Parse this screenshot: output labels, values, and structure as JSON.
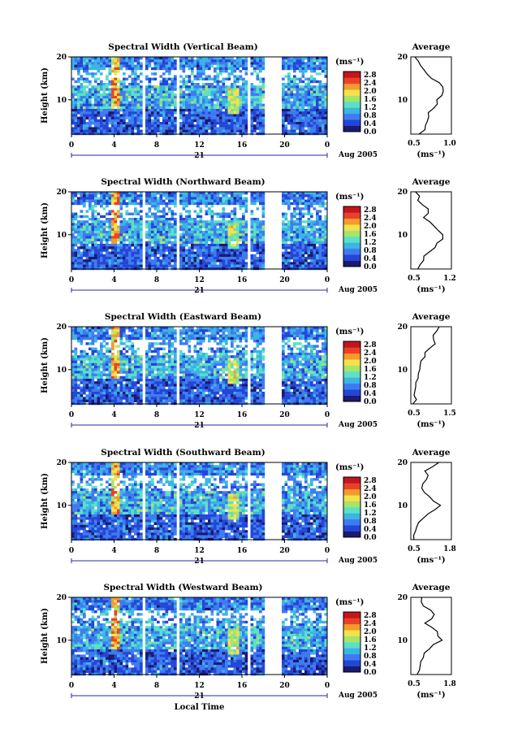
{
  "figure": {
    "x_axis_label": "Local Time",
    "time_ticks": [
      "0",
      "4",
      "8",
      "12",
      "16",
      "20",
      "0"
    ],
    "day_label": "21",
    "month_label": "Aug 2005",
    "height_ticks": [
      "20",
      "10"
    ],
    "height_label": "Height (km)",
    "colorbar_unit": "(ms⁻¹)",
    "colorbar_ticks": [
      "2.8",
      "2.4",
      "2.0",
      "1.6",
      "1.2",
      "0.8",
      "0.4",
      "0.0"
    ],
    "colormap": [
      "#1a1a6e",
      "#2346d8",
      "#3f7bef",
      "#3bb4e6",
      "#5ce0c4",
      "#a8e36a",
      "#f3e24a",
      "#f49a2e",
      "#e8412a",
      "#c4141c"
    ],
    "average_title": "Average",
    "average_unit": "(ms⁻¹)"
  },
  "chart_data": [
    {
      "type": "heatmap",
      "title": "Spectral Width (Vertical Beam)",
      "xlabel": "",
      "ylabel": "Height (km)",
      "xlim": [
        0,
        24
      ],
      "ylim": [
        2,
        20
      ],
      "colorbar_range": [
        0.0,
        2.8
      ],
      "data_gaps_hours": [
        [
          6.5,
          6.8
        ],
        [
          9.7,
          10.0
        ],
        [
          16.4,
          16.7
        ],
        [
          18.0,
          19.7
        ]
      ],
      "profile": {
        "title": "Average",
        "xlabel": "(ms⁻¹)",
        "xlim": [
          0.5,
          1.0
        ],
        "xticks": [
          "0.5",
          "1.0"
        ],
        "height": [
          20,
          18,
          16,
          14,
          12,
          10,
          8,
          6,
          4,
          2
        ],
        "values": [
          0.55,
          0.62,
          0.7,
          0.85,
          0.9,
          0.82,
          0.78,
          0.72,
          0.68,
          0.6
        ]
      }
    },
    {
      "type": "heatmap",
      "title": "Spectral Width (Northward Beam)",
      "xlabel": "",
      "ylabel": "Height (km)",
      "xlim": [
        0,
        24
      ],
      "ylim": [
        2,
        20
      ],
      "colorbar_range": [
        0.0,
        2.8
      ],
      "data_gaps_hours": [
        [
          6.5,
          6.8
        ],
        [
          9.7,
          10.0
        ],
        [
          16.4,
          16.7
        ],
        [
          18.0,
          19.7
        ]
      ],
      "profile": {
        "title": "Average",
        "xlabel": "(ms⁻¹)",
        "xlim": [
          0.5,
          1.2
        ],
        "xticks": [
          "0.5",
          "1.2"
        ],
        "height": [
          20,
          18,
          16,
          14,
          12,
          10,
          8,
          6,
          4,
          2
        ],
        "values": [
          0.58,
          0.62,
          0.8,
          0.72,
          0.9,
          1.05,
          0.95,
          0.82,
          0.72,
          0.62
        ]
      }
    },
    {
      "type": "heatmap",
      "title": "Spectral Width (Eastward Beam)",
      "xlabel": "",
      "ylabel": "Height (km)",
      "xlim": [
        0,
        24
      ],
      "ylim": [
        2,
        20
      ],
      "colorbar_range": [
        0.0,
        2.8
      ],
      "data_gaps_hours": [
        [
          6.5,
          6.8
        ],
        [
          9.7,
          10.0
        ],
        [
          16.4,
          16.7
        ],
        [
          18.0,
          19.7
        ]
      ],
      "profile": {
        "title": "Average",
        "xlabel": "(ms⁻¹)",
        "xlim": [
          0.5,
          1.5
        ],
        "xticks": [
          "0.5",
          "1.5"
        ],
        "height": [
          20,
          18,
          16,
          14,
          12,
          10,
          8,
          6,
          4,
          2
        ],
        "values": [
          1.2,
          1.05,
          1.1,
          0.85,
          0.75,
          0.72,
          0.68,
          0.62,
          0.58,
          0.55
        ]
      }
    },
    {
      "type": "heatmap",
      "title": "Spectral Width (Southward Beam)",
      "xlabel": "",
      "ylabel": "Height (km)",
      "xlim": [
        0,
        24
      ],
      "ylim": [
        2,
        20
      ],
      "colorbar_range": [
        0.0,
        2.8
      ],
      "data_gaps_hours": [
        [
          6.5,
          6.8
        ],
        [
          9.7,
          10.0
        ],
        [
          16.4,
          16.7
        ],
        [
          18.0,
          19.7
        ]
      ],
      "profile": {
        "title": "Average",
        "xlabel": "(ms⁻¹)",
        "xlim": [
          0.5,
          1.8
        ],
        "xticks": [
          "0.5",
          "1.8"
        ],
        "height": [
          20,
          18,
          16,
          14,
          12,
          10,
          8,
          6,
          4,
          2
        ],
        "values": [
          1.4,
          0.95,
          1.0,
          0.85,
          1.1,
          1.45,
          1.05,
          0.75,
          0.65,
          0.6
        ]
      }
    },
    {
      "type": "heatmap",
      "title": "Spectral Width (Westward Beam)",
      "xlabel": "Local Time",
      "ylabel": "Height (km)",
      "xlim": [
        0,
        24
      ],
      "ylim": [
        2,
        20
      ],
      "colorbar_range": [
        0.0,
        2.8
      ],
      "data_gaps_hours": [
        [
          6.5,
          6.8
        ],
        [
          9.7,
          10.0
        ],
        [
          16.4,
          16.7
        ],
        [
          18.0,
          19.7
        ]
      ],
      "profile": {
        "title": "Average",
        "xlabel": "(ms⁻¹)",
        "xlim": [
          0.5,
          1.8
        ],
        "xticks": [
          "0.5",
          "1.8"
        ],
        "height": [
          20,
          18,
          16,
          14,
          12,
          10,
          8,
          6,
          4,
          2
        ],
        "values": [
          0.85,
          0.9,
          1.25,
          0.95,
          1.35,
          1.5,
          1.1,
          0.9,
          0.8,
          0.7
        ]
      }
    }
  ]
}
